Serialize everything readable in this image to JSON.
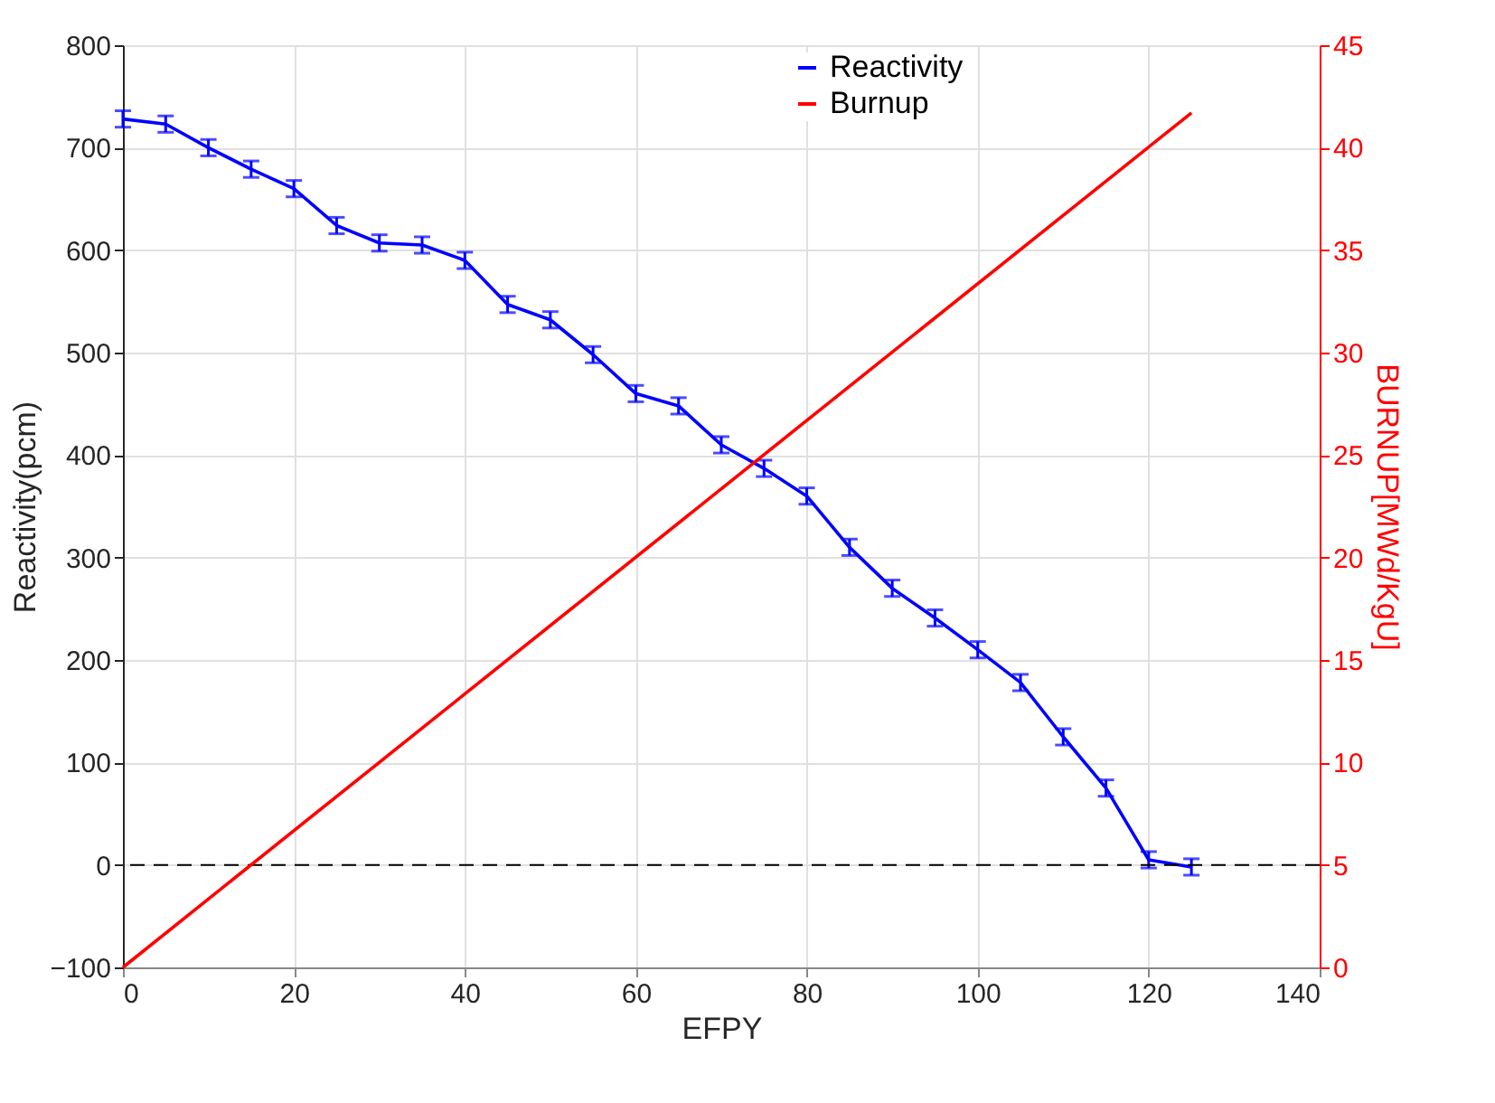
{
  "chart_data": {
    "type": "line",
    "xlabel": "EFPY",
    "ylabel": "Reactivity(pcm)",
    "y2label": "BURNUP[MWd/KgU]",
    "xlim": [
      0,
      140
    ],
    "xticks": [
      0,
      20,
      40,
      60,
      80,
      100,
      120,
      140
    ],
    "ylim": [
      -100,
      800
    ],
    "yticks": [
      -100,
      0,
      100,
      200,
      300,
      400,
      500,
      600,
      700,
      800
    ],
    "y2lim": [
      0,
      45
    ],
    "y2ticks": [
      0,
      5,
      10,
      15,
      20,
      25,
      30,
      35,
      40,
      45
    ],
    "grid": true,
    "legend": "top right",
    "marker": "none",
    "line_style": "solid",
    "ref_lines": [
      {
        "axis": "y",
        "value": 0,
        "color": "#000000",
        "line_style": "dashed"
      }
    ],
    "series": [
      {
        "name": "Reactivity",
        "color": "#0000ff",
        "x": [
          0,
          5,
          10,
          15,
          20,
          25,
          30,
          35,
          40,
          45,
          50,
          55,
          60,
          65,
          70,
          75,
          80,
          85,
          90,
          95,
          100,
          105,
          110,
          115,
          120,
          125
        ],
        "values": [
          728,
          723,
          700,
          679,
          660,
          624,
          607,
          605,
          590,
          547,
          532,
          498,
          460,
          448,
          410,
          387,
          360,
          310,
          270,
          241,
          210,
          178,
          125,
          75,
          5,
          -2
        ],
        "errors": [
          8,
          8,
          8,
          8,
          8,
          8,
          8,
          8,
          8,
          8,
          8,
          8,
          8,
          8,
          8,
          8,
          8,
          8,
          8,
          8,
          8,
          8,
          8,
          8,
          8,
          8
        ]
      },
      {
        "name": "Burnup",
        "color": "#ff0000",
        "axis": "y2",
        "x": [
          0,
          125
        ],
        "values": [
          0,
          41.7
        ]
      }
    ]
  }
}
